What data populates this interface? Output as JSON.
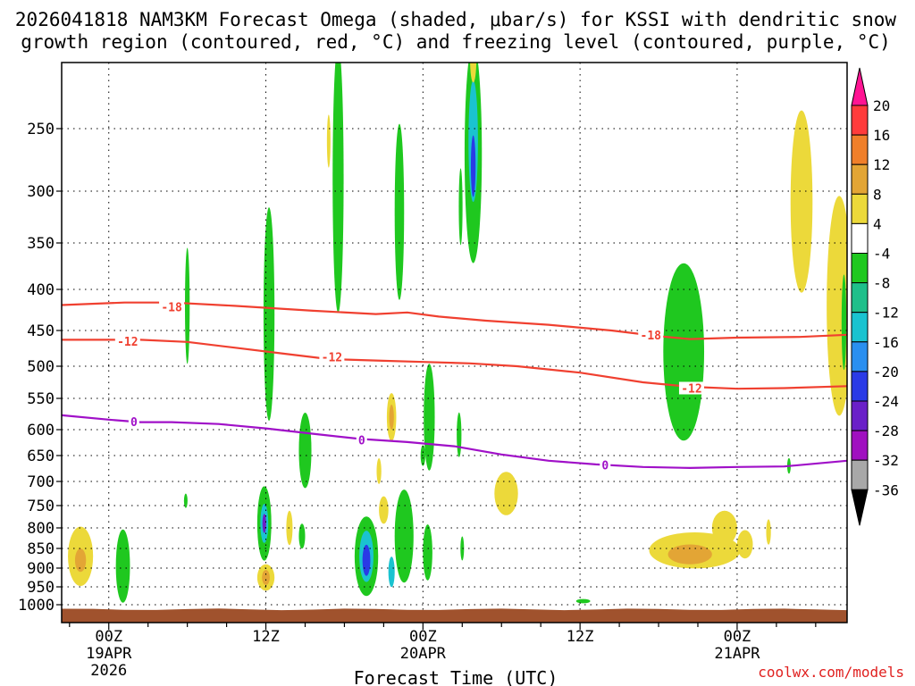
{
  "chart_data": {
    "type": "heatmap",
    "title_line1": "2026041818 NAM3KM Forecast Omega (shaded, μbar/s) for KSSI with dendritic snow",
    "title_line2": "growth region (contoured, red, °C) and freezing level (contoured, purple, °C)",
    "xlabel": "Forecast Time (UTC)",
    "credit": "coolwx.com/models",
    "x_range_hours": [
      -3,
      47
    ],
    "x_ticks": [
      {
        "hour": 0,
        "label": "00Z",
        "sub1": "19APR",
        "sub2": "2026"
      },
      {
        "hour": 10,
        "label": "12Z",
        "sub1": "",
        "sub2": ""
      },
      {
        "hour": 20,
        "label": "00Z",
        "sub1": "20APR",
        "sub2": ""
      },
      {
        "hour": 30,
        "label": "12Z",
        "sub1": "",
        "sub2": ""
      },
      {
        "hour": 40,
        "label": "00Z",
        "sub1": "21APR",
        "sub2": ""
      }
    ],
    "y_ticks": [
      {
        "p": 250,
        "label": "250"
      },
      {
        "p": 300,
        "label": "300"
      },
      {
        "p": 350,
        "label": "350"
      },
      {
        "p": 400,
        "label": "400"
      },
      {
        "p": 450,
        "label": "450"
      },
      {
        "p": 500,
        "label": "500"
      },
      {
        "p": 550,
        "label": "550"
      },
      {
        "p": 600,
        "label": "600"
      },
      {
        "p": 650,
        "label": "650"
      },
      {
        "p": 700,
        "label": "700"
      },
      {
        "p": 750,
        "label": "750"
      },
      {
        "p": 800,
        "label": "800"
      },
      {
        "p": 850,
        "label": "850"
      },
      {
        "p": 900,
        "label": "900"
      },
      {
        "p": 950,
        "label": "950"
      },
      {
        "p": 1000,
        "label": "1000"
      }
    ],
    "colorbar": {
      "levels": [
        "20",
        "16",
        "12",
        "8",
        "4",
        "-4",
        "-8",
        "-12",
        "-16",
        "-20",
        "-24",
        "-28",
        "-32",
        "-36"
      ],
      "colors": [
        "#ff1493",
        "#ff3b3b",
        "#f07f2a",
        "#e3a535",
        "#ecd93a",
        "#ffffff",
        "#1fc81f",
        "#1fbf8a",
        "#1ac3d0",
        "#2a8ff0",
        "#2a3ae6",
        "#6a20c8",
        "#a010c0",
        "#a8a8a8",
        "#000000"
      ]
    },
    "contours": {
      "minus18": {
        "label": "-18",
        "color": "#f04030",
        "points": [
          [
            -3,
            419
          ],
          [
            1,
            416
          ],
          [
            4,
            416
          ],
          [
            8,
            420
          ],
          [
            13,
            426
          ],
          [
            17,
            430
          ],
          [
            19,
            428
          ],
          [
            21,
            433
          ],
          [
            24,
            438
          ],
          [
            28,
            443
          ],
          [
            32,
            450
          ],
          [
            35,
            458
          ],
          [
            37,
            462
          ],
          [
            40,
            460
          ],
          [
            44,
            459
          ],
          [
            47,
            456
          ]
        ]
      },
      "minus12": {
        "label": "-12",
        "color": "#f04030",
        "points": [
          [
            -3,
            463
          ],
          [
            2,
            463
          ],
          [
            5,
            466
          ],
          [
            8,
            474
          ],
          [
            11,
            482
          ],
          [
            14,
            490
          ],
          [
            17,
            492
          ],
          [
            20,
            494
          ],
          [
            23,
            496
          ],
          [
            26,
            500
          ],
          [
            30,
            510
          ],
          [
            34,
            525
          ],
          [
            37,
            532
          ],
          [
            40,
            535
          ],
          [
            43,
            534
          ],
          [
            47,
            531
          ]
        ]
      },
      "zero": {
        "label": "0",
        "color": "#a010c8",
        "points": [
          [
            -3,
            577
          ],
          [
            0,
            584
          ],
          [
            2,
            588
          ],
          [
            4,
            588
          ],
          [
            7,
            591
          ],
          [
            10,
            598
          ],
          [
            13,
            608
          ],
          [
            16,
            618
          ],
          [
            19,
            624
          ],
          [
            22,
            632
          ],
          [
            25,
            648
          ],
          [
            28,
            660
          ],
          [
            31,
            667
          ],
          [
            34,
            672
          ],
          [
            37,
            674
          ],
          [
            40,
            672
          ],
          [
            43,
            671
          ],
          [
            47,
            660
          ]
        ]
      }
    },
    "contour_label_positions": [
      {
        "label": "-18",
        "hour": 4,
        "p": 421
      },
      {
        "label": "-12",
        "hour": 1.2,
        "p": 465
      },
      {
        "label": "-12",
        "hour": 14.2,
        "p": 487
      },
      {
        "label": "-18",
        "hour": 34.5,
        "p": 456
      },
      {
        "label": "-12",
        "hour": 37.1,
        "p": 534
      },
      {
        "label": "0",
        "hour": 1.6,
        "p": 587
      },
      {
        "label": "0",
        "hour": 16.1,
        "p": 620
      },
      {
        "label": "0",
        "hour": 31.6,
        "p": 668
      }
    ],
    "omega_cells": [
      {
        "hour": -1.8,
        "p": 870,
        "dt": 0.8,
        "dp": 75,
        "value": 6
      },
      {
        "hour": -1.8,
        "p": 880,
        "dt": 0.35,
        "dp": 30,
        "value": 10
      },
      {
        "hour": 0.9,
        "p": 895,
        "dt": 0.45,
        "dp": 95,
        "value": -6
      },
      {
        "hour": 5.0,
        "p": 420,
        "dt": 0.15,
        "dp": 70,
        "value": -6
      },
      {
        "hour": 4.9,
        "p": 740,
        "dt": 0.1,
        "dp": 15,
        "value": -6
      },
      {
        "hour": 10.2,
        "p": 430,
        "dt": 0.35,
        "dp": 130,
        "value": -6
      },
      {
        "hour": 9.9,
        "p": 790,
        "dt": 0.45,
        "dp": 85,
        "value": -6
      },
      {
        "hour": 9.9,
        "p": 790,
        "dt": 0.25,
        "dp": 45,
        "value": -14
      },
      {
        "hour": 9.9,
        "p": 790,
        "dt": 0.12,
        "dp": 22,
        "value": -26
      },
      {
        "hour": 10.0,
        "p": 925,
        "dt": 0.55,
        "dp": 35,
        "value": 6
      },
      {
        "hour": 10.0,
        "p": 925,
        "dt": 0.25,
        "dp": 20,
        "value": 11
      },
      {
        "hour": 11.5,
        "p": 800,
        "dt": 0.2,
        "dp": 40,
        "value": 6
      },
      {
        "hour": 12.5,
        "p": 640,
        "dt": 0.4,
        "dp": 70,
        "value": -6
      },
      {
        "hour": 12.3,
        "p": 820,
        "dt": 0.2,
        "dp": 30,
        "value": -6
      },
      {
        "hour": 14.0,
        "p": 260,
        "dt": 0.1,
        "dp": 20,
        "value": 6
      },
      {
        "hour": 14.6,
        "p": 290,
        "dt": 0.35,
        "dp": 110,
        "value": -6
      },
      {
        "hour": 16.4,
        "p": 870,
        "dt": 0.75,
        "dp": 100,
        "value": -6
      },
      {
        "hour": 16.4,
        "p": 870,
        "dt": 0.45,
        "dp": 65,
        "value": -12
      },
      {
        "hour": 16.4,
        "p": 880,
        "dt": 0.25,
        "dp": 40,
        "value": -22
      },
      {
        "hour": 17.2,
        "p": 680,
        "dt": 0.15,
        "dp": 25,
        "value": 6
      },
      {
        "hour": 17.5,
        "p": 760,
        "dt": 0.3,
        "dp": 30,
        "value": 6
      },
      {
        "hour": 18.0,
        "p": 580,
        "dt": 0.3,
        "dp": 40,
        "value": 6
      },
      {
        "hour": 18.0,
        "p": 580,
        "dt": 0.15,
        "dp": 20,
        "value": 11
      },
      {
        "hour": 18.5,
        "p": 320,
        "dt": 0.3,
        "dp": 80,
        "value": -6
      },
      {
        "hour": 18.8,
        "p": 820,
        "dt": 0.6,
        "dp": 110,
        "value": -6
      },
      {
        "hour": 18.0,
        "p": 910,
        "dt": 0.2,
        "dp": 40,
        "value": -14
      },
      {
        "hour": 20.0,
        "p": 650,
        "dt": 0.15,
        "dp": 20,
        "value": -6
      },
      {
        "hour": 20.4,
        "p": 580,
        "dt": 0.35,
        "dp": 90,
        "value": -6
      },
      {
        "hour": 20.3,
        "p": 860,
        "dt": 0.3,
        "dp": 70,
        "value": -6
      },
      {
        "hour": 22.5,
        "p": 850,
        "dt": 0.1,
        "dp": 30,
        "value": -6
      },
      {
        "hour": 23.2,
        "p": 270,
        "dt": 0.55,
        "dp": 85,
        "value": -6
      },
      {
        "hour": 23.2,
        "p": 260,
        "dt": 0.3,
        "dp": 45,
        "value": -14
      },
      {
        "hour": 23.2,
        "p": 280,
        "dt": 0.15,
        "dp": 25,
        "value": -20
      },
      {
        "hour": 23.2,
        "p": 205,
        "dt": 0.2,
        "dp": 15,
        "value": 6
      },
      {
        "hour": 22.4,
        "p": 315,
        "dt": 0.12,
        "dp": 35,
        "value": -6
      },
      {
        "hour": 22.3,
        "p": 610,
        "dt": 0.15,
        "dp": 40,
        "value": -6
      },
      {
        "hour": 25.3,
        "p": 725,
        "dt": 0.75,
        "dp": 45,
        "value": 6
      },
      {
        "hour": 30.2,
        "p": 990,
        "dt": 0.45,
        "dp": 6,
        "value": -6
      },
      {
        "hour": 36.6,
        "p": 480,
        "dt": 1.3,
        "dp": 120,
        "value": -6
      },
      {
        "hour": 37.3,
        "p": 855,
        "dt": 2.9,
        "dp": 45,
        "value": 6
      },
      {
        "hour": 37.0,
        "p": 865,
        "dt": 1.4,
        "dp": 25,
        "value": 9
      },
      {
        "hour": 39.2,
        "p": 800,
        "dt": 0.8,
        "dp": 40,
        "value": 6
      },
      {
        "hour": 40.5,
        "p": 840,
        "dt": 0.5,
        "dp": 35,
        "value": 6
      },
      {
        "hour": 42.0,
        "p": 810,
        "dt": 0.15,
        "dp": 30,
        "value": 6
      },
      {
        "hour": 43.3,
        "p": 670,
        "dt": 0.1,
        "dp": 15,
        "value": -6
      },
      {
        "hour": 44.1,
        "p": 310,
        "dt": 0.7,
        "dp": 80,
        "value": 6
      },
      {
        "hour": 46.5,
        "p": 420,
        "dt": 0.8,
        "dp": 130,
        "value": 6
      },
      {
        "hour": 46.8,
        "p": 440,
        "dt": 0.15,
        "dp": 60,
        "value": -6
      }
    ],
    "terrain_color": "#a0522d",
    "grid": true
  }
}
